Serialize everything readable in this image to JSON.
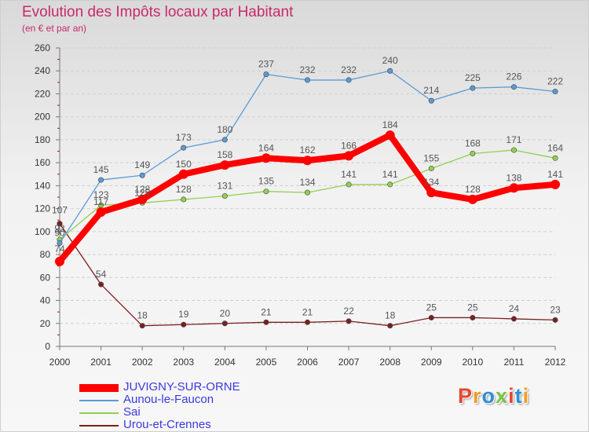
{
  "header": {
    "title": "Evolution des Impôts locaux par Habitant",
    "subtitle": "(en € et par an)"
  },
  "logo": {
    "text": "Proxiti",
    "colors": [
      "#e8452e",
      "#f29b1d",
      "#2e8fd6",
      "#7cc242",
      "#e8452e",
      "#2e8fd6",
      "#f29b1d"
    ]
  },
  "chart_data": {
    "type": "line",
    "title": "Evolution des Impôts locaux par Habitant",
    "subtitle": "(en € et par an)",
    "x": [
      "2000",
      "2001",
      "2002",
      "2003",
      "2004",
      "2005",
      "2006",
      "2007",
      "2008",
      "2009",
      "2010",
      "2011",
      "2012"
    ],
    "ylim": [
      0,
      260
    ],
    "yticks": [
      0,
      20,
      40,
      60,
      80,
      100,
      120,
      140,
      160,
      180,
      200,
      220,
      240,
      260
    ],
    "grid": "horizontal",
    "legend_position": "bottom-left",
    "series": [
      {
        "name": "JUVIGNY-SUR-ORNE",
        "color": "#ff0000",
        "values": [
          74,
          117,
          128,
          150,
          158,
          164,
          162,
          166,
          184,
          134,
          128,
          138,
          141
        ],
        "labels": [
          "74",
          "117",
          "128",
          "150",
          "158",
          "164",
          "162",
          "166",
          "184",
          "134",
          "128",
          "138",
          "141"
        ]
      },
      {
        "name": "Aunou-le-Faucon",
        "color": "#5b9bd5",
        "values": [
          90,
          145,
          149,
          173,
          180,
          237,
          232,
          232,
          240,
          214,
          225,
          226,
          222
        ],
        "labels": [
          "90",
          "145",
          "149",
          "173",
          "180",
          "237",
          "232",
          "232",
          "240",
          "214",
          "225",
          "226",
          "222"
        ]
      },
      {
        "name": "Sai",
        "color": "#92d050",
        "values": [
          93,
          123,
          125,
          128,
          131,
          135,
          134,
          141,
          141,
          155,
          168,
          171,
          164
        ],
        "labels": [
          "93",
          "123",
          "125",
          "128",
          "131",
          "135",
          "134",
          "141",
          "141",
          "155",
          "168",
          "171",
          "164"
        ]
      },
      {
        "name": "Urou-et-Crennes",
        "color": "#7b2020",
        "values": [
          107,
          54,
          18,
          19,
          20,
          21,
          21,
          22,
          18,
          25,
          25,
          24,
          23
        ],
        "labels": [
          "107",
          "54",
          "18",
          "19",
          "20",
          "21",
          "21",
          "22",
          "18",
          "25",
          "25",
          "24",
          "23"
        ]
      }
    ]
  }
}
